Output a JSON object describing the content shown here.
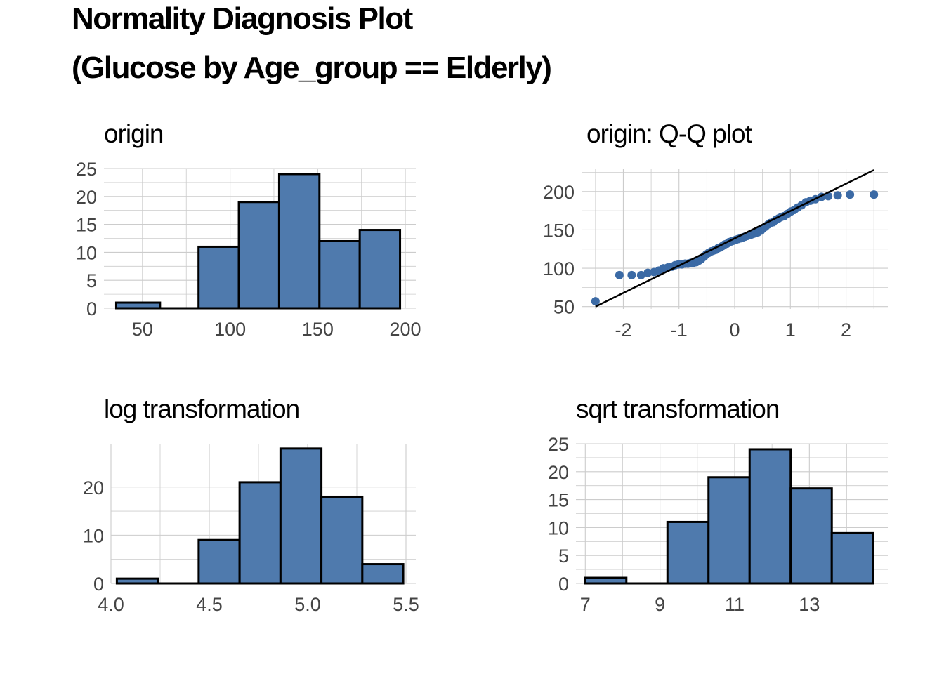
{
  "title_line1": "Normality Diagnosis Plot",
  "title_line2": "(Glucose by Age_group == Elderly)",
  "colors": {
    "fill": "#4f7aad",
    "point": "#3b6aa5",
    "outline": "#000000",
    "grid": "#cccccc",
    "tick_text": "#444444"
  },
  "chart_data": [
    {
      "panel": "top-left",
      "type": "bar",
      "title": "origin",
      "bin_edges": [
        35,
        60,
        82,
        105,
        128,
        151,
        174,
        197
      ],
      "values": [
        1,
        0,
        11,
        19,
        24,
        12,
        14
      ],
      "xlim": [
        28,
        206
      ],
      "ylim": [
        0,
        25
      ],
      "xticks": [
        50,
        100,
        150,
        200
      ],
      "xtick_labels": [
        "50",
        "100",
        "150",
        "200"
      ],
      "yticks": [
        0,
        5,
        10,
        15,
        20,
        25
      ],
      "ytick_labels": [
        "0",
        "5",
        "10",
        "15",
        "20",
        "25"
      ],
      "grid": true
    },
    {
      "panel": "top-right",
      "type": "scatter",
      "title": "origin: Q-Q plot",
      "points": [
        [
          -2.5,
          57
        ],
        [
          -2.07,
          91
        ],
        [
          -1.85,
          91
        ],
        [
          -1.68,
          91
        ],
        [
          -1.56,
          94
        ],
        [
          -1.45,
          95
        ],
        [
          -1.36,
          97
        ],
        [
          -1.28,
          100
        ],
        [
          -1.2,
          101
        ],
        [
          -1.13,
          102
        ],
        [
          -1.07,
          104
        ],
        [
          -1.01,
          105
        ],
        [
          -0.95,
          105
        ],
        [
          -0.89,
          106
        ],
        [
          -0.84,
          106
        ],
        [
          -0.79,
          107
        ],
        [
          -0.74,
          107
        ],
        [
          -0.69,
          108
        ],
        [
          -0.64,
          110
        ],
        [
          -0.6,
          112
        ],
        [
          -0.55,
          115
        ],
        [
          -0.51,
          118
        ],
        [
          -0.47,
          120
        ],
        [
          -0.42,
          122
        ],
        [
          -0.38,
          123
        ],
        [
          -0.34,
          124
        ],
        [
          -0.3,
          126
        ],
        [
          -0.26,
          127
        ],
        [
          -0.22,
          129
        ],
        [
          -0.18,
          131
        ],
        [
          -0.14,
          132
        ],
        [
          -0.1,
          134
        ],
        [
          -0.06,
          135
        ],
        [
          -0.02,
          136
        ],
        [
          0.02,
          137
        ],
        [
          0.06,
          138
        ],
        [
          0.1,
          139
        ],
        [
          0.14,
          140
        ],
        [
          0.18,
          141
        ],
        [
          0.22,
          142
        ],
        [
          0.26,
          143
        ],
        [
          0.3,
          144
        ],
        [
          0.34,
          145
        ],
        [
          0.38,
          146
        ],
        [
          0.42,
          147
        ],
        [
          0.47,
          149
        ],
        [
          0.51,
          152
        ],
        [
          0.55,
          154
        ],
        [
          0.6,
          157
        ],
        [
          0.64,
          159
        ],
        [
          0.69,
          160
        ],
        [
          0.74,
          163
        ],
        [
          0.79,
          165
        ],
        [
          0.84,
          167
        ],
        [
          0.89,
          168
        ],
        [
          0.95,
          171
        ],
        [
          1.01,
          174
        ],
        [
          1.07,
          176
        ],
        [
          1.13,
          179
        ],
        [
          1.2,
          182
        ],
        [
          1.28,
          186
        ],
        [
          1.36,
          188
        ],
        [
          1.45,
          190
        ],
        [
          1.56,
          193
        ],
        [
          1.68,
          194
        ],
        [
          1.85,
          195
        ],
        [
          2.07,
          196
        ],
        [
          2.5,
          196
        ]
      ],
      "ref_line": [
        [
          -2.5,
          50
        ],
        [
          2.5,
          228
        ]
      ],
      "xlim": [
        -2.75,
        2.75
      ],
      "ylim": [
        47,
        230
      ],
      "xticks": [
        -2,
        -1,
        0,
        1,
        2
      ],
      "xtick_labels": [
        "-2",
        "-1",
        "0",
        "1",
        "2"
      ],
      "yticks": [
        50,
        100,
        150,
        200
      ],
      "ytick_labels": [
        "50",
        "100",
        "150",
        "200"
      ],
      "grid": true
    },
    {
      "panel": "bottom-left",
      "type": "bar",
      "title": "log transformation",
      "bin_edges": [
        4.03,
        4.238,
        4.446,
        4.654,
        4.862,
        5.07,
        5.278,
        5.486
      ],
      "values": [
        1,
        0,
        9,
        21,
        28,
        18,
        4
      ],
      "xlim": [
        4.0,
        5.55
      ],
      "ylim": [
        0,
        29
      ],
      "xticks": [
        4.0,
        4.5,
        5.0,
        5.5
      ],
      "xtick_labels": [
        "4.0",
        "4.5",
        "5.0",
        "5.5"
      ],
      "yticks": [
        0,
        10,
        20
      ],
      "ytick_labels": [
        "0",
        "10",
        "20"
      ],
      "grid": true
    },
    {
      "panel": "bottom-right",
      "type": "bar",
      "title": "sqrt transformation",
      "bin_edges": [
        7.0,
        8.1,
        9.2,
        10.3,
        11.4,
        12.5,
        13.6,
        14.7
      ],
      "values": [
        1,
        0,
        11,
        19,
        24,
        17,
        9
      ],
      "xlim": [
        6.75,
        15.1
      ],
      "ylim": [
        0,
        25
      ],
      "xticks": [
        7,
        9,
        11,
        13
      ],
      "xtick_labels": [
        "7",
        "9",
        "11",
        "13"
      ],
      "yticks": [
        0,
        5,
        10,
        15,
        20,
        25
      ],
      "ytick_labels": [
        "0",
        "5",
        "10",
        "15",
        "20",
        "25"
      ],
      "grid": true
    }
  ]
}
